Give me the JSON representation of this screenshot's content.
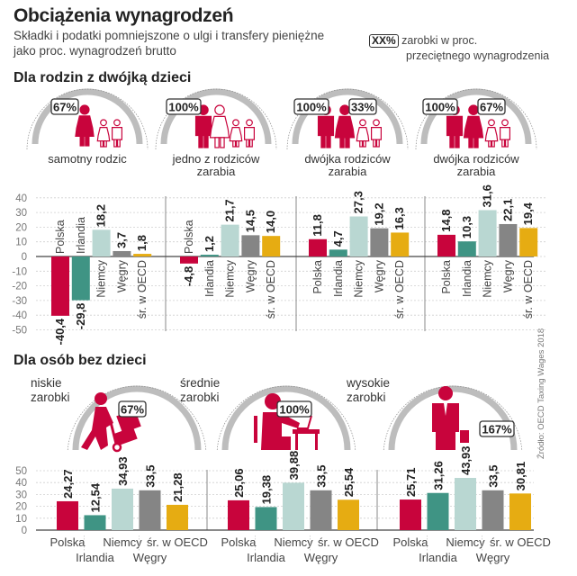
{
  "header": {
    "title": "Obciążenia wynagrodzeń",
    "subtitle_line1": "Składki i podatki pomniejszone o ulgi i transfery pieniężne",
    "subtitle_line2": "jako proc. wynagrodzeń brutto",
    "legend_box": "XX%",
    "legend_line1": "zarobki w proc.",
    "legend_line2": "przeciętnego wynagrodzenia"
  },
  "sections": {
    "families": "Dla rodzin z dwójką dzieci",
    "singles": "Dla osób bez dzieci"
  },
  "source": "Źródło: OECD Taxing Wages 2018",
  "family_groups": [
    {
      "label_lines": [
        "samotny rodzic"
      ],
      "badges": [
        "67%"
      ]
    },
    {
      "label_lines": [
        "jedno z  rodziców",
        "zarabia"
      ],
      "badges": [
        "100%"
      ]
    },
    {
      "label_lines": [
        "dwójka rodziców",
        "zarabia"
      ],
      "badges": [
        "100%",
        "33%"
      ]
    },
    {
      "label_lines": [
        "dwójka rodziców",
        "zarabia"
      ],
      "badges": [
        "100%",
        "67%"
      ]
    }
  ],
  "single_groups": [
    {
      "label_lines": [
        "niskie",
        "zarobki"
      ],
      "badge": "67%",
      "icon": "worker-with-handcart-icon"
    },
    {
      "label_lines": [
        "średnie",
        "zarobki"
      ],
      "badge": "100%",
      "icon": "office-worker-at-desk-icon"
    },
    {
      "label_lines": [
        "wysokie",
        "zarobki"
      ],
      "badge": "167%",
      "icon": "businessman-with-briefcase-icon"
    }
  ],
  "colors": {
    "Polska": "#c8043c",
    "Irlandia": "#3f9484",
    "Niemcy": "#b9d7d2",
    "Węgry": "#858585",
    "śr. w OECD": "#e6ac12",
    "accent": "#c8043c",
    "arc": "#bdbdbd"
  },
  "chart_data": [
    {
      "type": "bar",
      "title": "Dla rodzin z dwójką dzieci",
      "categories": [
        "samotny rodzic (67%)",
        "jedno z rodziców zarabia (100%)",
        "dwójka rodziców zarabia (100% + 33%)",
        "dwójka rodziców zarabia (100% + 67%)"
      ],
      "series_names": [
        "Polska",
        "Irlandia",
        "Niemcy",
        "Węgry",
        "śr. w OECD"
      ],
      "values": [
        [
          -40.4,
          -29.8,
          18.2,
          3.7,
          1.8
        ],
        [
          -4.8,
          1.2,
          21.7,
          14.5,
          14.0
        ],
        [
          11.8,
          4.7,
          27.3,
          19.2,
          16.3
        ],
        [
          14.8,
          10.3,
          31.6,
          22.1,
          19.4
        ]
      ],
      "value_labels": [
        [
          "-40,4",
          "-29,8",
          "18,2",
          "3,7",
          "1,8"
        ],
        [
          "-4,8",
          "1,2",
          "21,7",
          "14,5",
          "14,0"
        ],
        [
          "11,8",
          "4,7",
          "27,3",
          "19,2",
          "16,3"
        ],
        [
          "14,8",
          "10,3",
          "31,6",
          "22,1",
          "19,4"
        ]
      ],
      "yticks": [
        "40",
        "30",
        "20",
        "10",
        "0",
        "-10",
        "-20",
        "-30",
        "-40",
        "-50"
      ],
      "ylim": [
        -50,
        40
      ],
      "grid": true,
      "xlabel": "",
      "ylabel": ""
    },
    {
      "type": "bar",
      "title": "Dla osób bez dzieci",
      "categories": [
        "niskie zarobki (67%)",
        "średnie zarobki (100%)",
        "wysokie zarobki (167%)"
      ],
      "series_names": [
        "Polska",
        "Irlandia",
        "Niemcy",
        "Węgry",
        "śr. w OECD"
      ],
      "values": [
        [
          24.27,
          12.54,
          34.93,
          33.5,
          21.28
        ],
        [
          25.06,
          19.38,
          39.88,
          33.5,
          25.54
        ],
        [
          25.71,
          31.26,
          43.93,
          33.5,
          30.81
        ]
      ],
      "value_labels": [
        [
          "24,27",
          "12,54",
          "34,93",
          "33,5",
          "21,28"
        ],
        [
          "25,06",
          "19,38",
          "39,88",
          "33,5",
          "25,54"
        ],
        [
          "25,71",
          "31,26",
          "43,93",
          "33,5",
          "30,81"
        ]
      ],
      "yticks": [
        "50",
        "40",
        "30",
        "20",
        "10",
        "0"
      ],
      "ylim": [
        0,
        50
      ],
      "grid": true,
      "xlabel": "",
      "ylabel": ""
    }
  ]
}
